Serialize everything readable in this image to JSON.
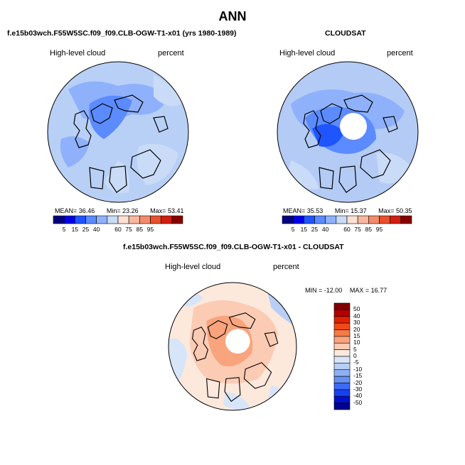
{
  "page": {
    "title": "ANN",
    "left_panel_title": "f.e15b03wch.F55W5SC.f09_f09.CLB-OGW-T1-x01 (yrs 1980-1989)",
    "right_panel_title": "CLOUDSAT",
    "diff_panel_title": "f.e15b03wch.F55W5SC.f09_f09.CLB-OGW-T1-x01 - CLOUDSAT"
  },
  "colors": {
    "land_outline": "#000000",
    "missing": "#ffffff"
  },
  "chart_data": [
    {
      "type": "heatmap",
      "projection": "north-polar-stereographic",
      "variable": "High-level cloud",
      "units": "percent",
      "stats": {
        "mean_label": "MEAN=",
        "mean": "36.46",
        "min_label": "Min=",
        "min": "23.26",
        "max_label": "Max=",
        "max": "53.41"
      },
      "colorbar": {
        "ticks": [
          "5",
          "15",
          "25",
          "40",
          "60",
          "75",
          "85",
          "95"
        ],
        "colors": [
          "#00007f",
          "#0000e6",
          "#1f55ff",
          "#5b8bff",
          "#8fb1fb",
          "#c9dbf6",
          "#fbe0d3",
          "#f7b89f",
          "#f28b6c",
          "#e9502c",
          "#d21e10",
          "#870000"
        ]
      }
    },
    {
      "type": "heatmap",
      "projection": "north-polar-stereographic",
      "variable": "High-level cloud",
      "units": "percent",
      "stats": {
        "mean_label": "MEAN=",
        "mean": "35.53",
        "min_label": "Min=",
        "min": "15.37",
        "max_label": "Max=",
        "max": "50.35"
      },
      "colorbar": {
        "ticks": [
          "5",
          "15",
          "25",
          "40",
          "60",
          "75",
          "85",
          "95"
        ],
        "colors": [
          "#00007f",
          "#0000e6",
          "#1f55ff",
          "#5b8bff",
          "#8fb1fb",
          "#c9dbf6",
          "#fbe0d3",
          "#f7b89f",
          "#f28b6c",
          "#e9502c",
          "#d21e10",
          "#870000"
        ]
      }
    },
    {
      "type": "heatmap",
      "projection": "north-polar-stereographic",
      "variable": "High-level cloud",
      "units": "percent",
      "stats": {
        "min_label": "MIN =",
        "min": "-12.00",
        "max_label": "MAX =",
        "max": "16.77"
      },
      "colorbar": {
        "ticks": [
          "50",
          "40",
          "30",
          "20",
          "15",
          "10",
          "5",
          "0",
          "-5",
          "-10",
          "-15",
          "-20",
          "-30",
          "-40",
          "-50"
        ],
        "colors": [
          "#7f0000",
          "#b40000",
          "#e02000",
          "#f24a16",
          "#f67a44",
          "#f9a47d",
          "#fbcbb4",
          "#fde8dc",
          "#d7e5f8",
          "#b7cff6",
          "#8eb0f3",
          "#6690f3",
          "#3e6af5",
          "#1740f0",
          "#0010d0",
          "#000090"
        ]
      }
    }
  ]
}
